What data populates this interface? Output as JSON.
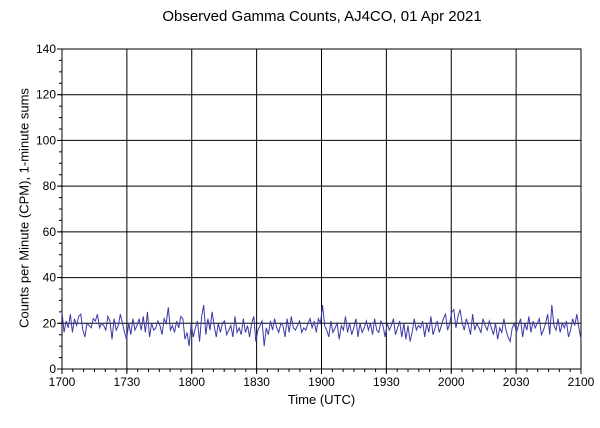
{
  "chart_data": {
    "type": "line",
    "title": "Observed Gamma Counts, AJ4CO, 01 Apr 2021",
    "xlabel": "Time (UTC)",
    "ylabel": "Counts per Minute (CPM), 1-minute sums",
    "xlim_minutes": [
      0,
      240
    ],
    "ylim": [
      0,
      140
    ],
    "x_tick_labels": [
      "1700",
      "1730",
      "1800",
      "1830",
      "1900",
      "1930",
      "2000",
      "2030",
      "2100"
    ],
    "y_tick_labels": [
      "0",
      "20",
      "40",
      "60",
      "80",
      "100",
      "120",
      "140"
    ],
    "grid": true,
    "colors": {
      "line": "#3a3aa8",
      "grid": "#000000"
    },
    "series": [
      {
        "values": [
          25,
          16,
          21,
          18,
          24,
          16,
          22,
          19,
          23,
          24,
          17,
          14,
          20,
          19,
          18,
          22,
          21,
          24,
          18,
          20,
          19,
          17,
          23,
          21,
          13,
          22,
          17,
          19,
          24,
          20,
          16,
          13,
          20,
          15,
          22,
          17,
          19,
          22,
          17,
          23,
          16,
          25,
          14,
          20,
          17,
          18,
          21,
          19,
          15,
          22,
          20,
          27,
          17,
          19,
          16,
          21,
          18,
          23,
          22,
          13,
          16,
          10,
          20,
          14,
          18,
          21,
          12,
          23,
          28,
          15,
          22,
          17,
          25,
          19,
          14,
          20,
          16,
          20,
          21,
          15,
          17,
          19,
          14,
          23,
          16,
          18,
          15,
          22,
          16,
          19,
          14,
          20,
          23,
          12,
          17,
          19,
          21,
          10,
          18,
          15,
          21,
          17,
          22,
          18,
          16,
          20,
          19,
          14,
          22,
          16,
          23,
          18,
          17,
          19,
          21,
          16,
          18,
          17,
          20,
          22,
          18,
          21,
          16,
          22,
          20,
          28,
          19,
          17,
          14,
          21,
          16,
          18,
          20,
          13,
          19,
          17,
          23,
          16,
          20,
          15,
          18,
          22,
          14,
          20,
          16,
          18,
          21,
          17,
          20,
          15,
          22,
          17,
          16,
          21,
          19,
          14,
          20,
          17,
          19,
          22,
          15,
          18,
          21,
          14,
          20,
          13,
          19,
          12,
          16,
          22,
          17,
          19,
          18,
          21,
          14,
          20,
          16,
          23,
          15,
          18,
          21,
          16,
          19,
          22,
          24,
          17,
          20,
          25,
          26,
          18,
          23,
          26,
          20,
          17,
          22,
          19,
          15,
          24,
          17,
          20,
          18,
          16,
          22,
          19,
          17,
          21,
          18,
          15,
          20,
          13,
          18,
          16,
          22,
          17,
          14,
          12,
          18,
          20,
          16,
          19,
          22,
          14,
          20,
          17,
          23,
          16,
          21,
          18,
          20,
          22,
          15,
          17,
          20,
          24,
          15,
          28,
          19,
          17,
          22,
          16,
          20,
          18,
          21,
          14,
          17,
          22,
          19,
          24,
          18,
          13
        ]
      }
    ]
  }
}
